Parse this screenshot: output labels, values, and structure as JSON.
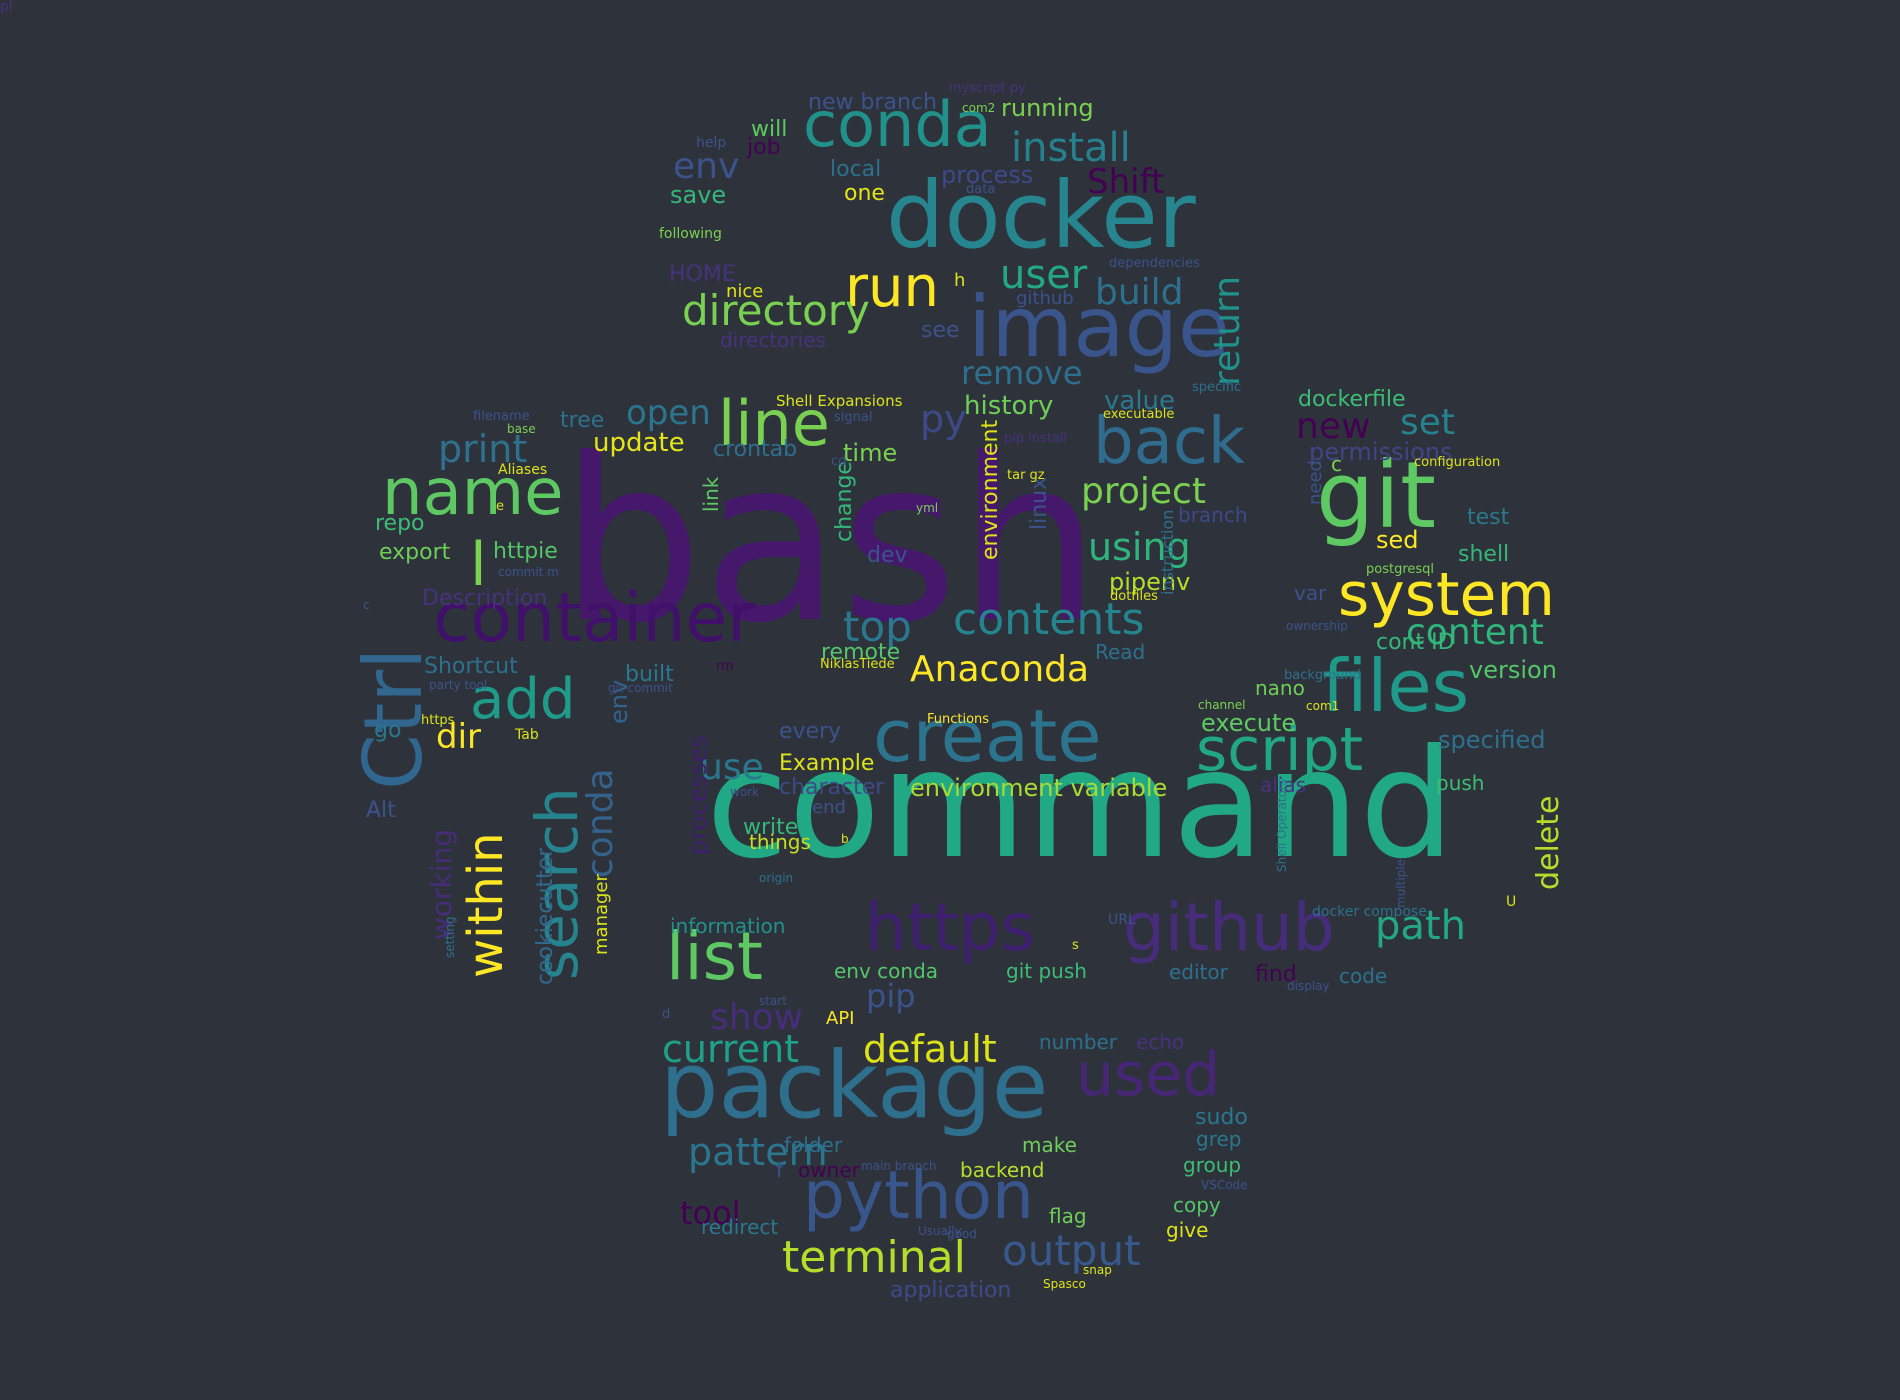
{
  "colors": {
    "background": "#2e333b"
  },
  "words": [
    {
      "text": "bash",
      "color": "#45186b"
    },
    {
      "text": "command",
      "color": "#21a884"
    },
    {
      "text": "docker",
      "color": "#26858e"
    },
    {
      "text": "package",
      "color": "#2e6f8e"
    },
    {
      "text": "image",
      "color": "#3a548c"
    },
    {
      "text": "container",
      "color": "#40106a"
    },
    {
      "text": "create",
      "color": "#2c738e"
    },
    {
      "text": "git",
      "color": "#5ec962"
    },
    {
      "text": "Ctrl",
      "color": "#31668e"
    },
    {
      "text": "files",
      "color": "#1f9a8a"
    },
    {
      "text": "python",
      "color": "#39568c"
    },
    {
      "text": "github",
      "color": "#462c7b"
    },
    {
      "text": "https",
      "color": "#3e1e6e"
    },
    {
      "text": "conda",
      "color": "#21918c"
    },
    {
      "text": "system",
      "color": "#fde725"
    },
    {
      "text": "name",
      "color": "#5ec962"
    },
    {
      "text": "line",
      "color": "#7ad151"
    },
    {
      "text": "back",
      "color": "#2f6c8e"
    },
    {
      "text": "script",
      "color": "#22a785"
    },
    {
      "text": "list",
      "color": "#5ec962"
    },
    {
      "text": "search",
      "color": "#25848e"
    },
    {
      "text": "within",
      "color": "#fde725"
    },
    {
      "text": "run",
      "color": "#fde725"
    },
    {
      "text": "used",
      "color": "#482677"
    },
    {
      "text": "add",
      "color": "#1e9c89"
    },
    {
      "text": "output",
      "color": "#38598c"
    },
    {
      "text": "install",
      "color": "#27808e"
    },
    {
      "text": "directory",
      "color": "#7ad151"
    },
    {
      "text": "terminal",
      "color": "#b5de2b"
    },
    {
      "text": "contents",
      "color": "#25858e"
    },
    {
      "text": "user",
      "color": "#22a884"
    },
    {
      "text": "path",
      "color": "#22a884"
    },
    {
      "text": "env",
      "color": "#3b528b"
    },
    {
      "text": "pattern",
      "color": "#2a768e"
    },
    {
      "text": "build",
      "color": "#2d708e"
    },
    {
      "text": "top",
      "color": "#2a778e"
    },
    {
      "text": "default",
      "color": "#dde318"
    },
    {
      "text": "current",
      "color": "#1fa088"
    },
    {
      "text": "conda",
      "color": "#33638d"
    },
    {
      "text": "env",
      "color": "#33638d"
    },
    {
      "text": "content",
      "color": "#2fb47c"
    },
    {
      "text": "Anaconda",
      "color": "#fde725"
    },
    {
      "text": "project",
      "color": "#7ad151"
    },
    {
      "text": "using",
      "color": "#2fb47c"
    },
    {
      "text": "return",
      "color": "#20928c"
    },
    {
      "text": "remove",
      "color": "#2e6e8e"
    },
    {
      "text": "print",
      "color": "#2d718e"
    },
    {
      "text": "open",
      "color": "#2b758e"
    },
    {
      "text": "show",
      "color": "#472d7b"
    },
    {
      "text": "pip",
      "color": "#3b528b"
    },
    {
      "text": "tool",
      "color": "#440154"
    },
    {
      "text": "working",
      "color": "#472c7a"
    },
    {
      "text": "delete",
      "color": "#b5de2b"
    },
    {
      "text": "new",
      "color": "#440154"
    },
    {
      "text": "set",
      "color": "#26828e"
    },
    {
      "text": "use",
      "color": "#2a788e"
    },
    {
      "text": "dir",
      "color": "#fde725"
    },
    {
      "text": "l",
      "color": "#7ad151"
    },
    {
      "text": "py",
      "color": "#3e4989"
    },
    {
      "text": "update",
      "color": "#e5e419"
    },
    {
      "text": "history",
      "color": "#6ece58"
    },
    {
      "text": "value",
      "color": "#2a778e"
    },
    {
      "text": "execute",
      "color": "#5ec962"
    },
    {
      "text": "environment variable",
      "color": "#a8db34"
    },
    {
      "text": "version",
      "color": "#54c568"
    },
    {
      "text": "specified",
      "color": "#2d708e"
    },
    {
      "text": "permissions",
      "color": "#414487"
    },
    {
      "text": "dockerfile",
      "color": "#3dbc74"
    },
    {
      "text": "running",
      "color": "#7ad151"
    },
    {
      "text": "new branch",
      "color": "#3b528b"
    },
    {
      "text": "Shift",
      "color": "#440154"
    },
    {
      "text": "process",
      "color": "#3e4989"
    },
    {
      "text": "save",
      "color": "#35b779"
    },
    {
      "text": "one",
      "color": "#e5e419"
    },
    {
      "text": "local",
      "color": "#2d708e"
    },
    {
      "text": "will",
      "color": "#5ec962"
    },
    {
      "text": "job",
      "color": "#440154"
    },
    {
      "text": "pipenv",
      "color": "#b5de2b"
    },
    {
      "text": "sed",
      "color": "#fde725"
    },
    {
      "text": "shell",
      "color": "#35b779"
    },
    {
      "text": "test",
      "color": "#2a778e"
    },
    {
      "text": "branch",
      "color": "#3e4989"
    },
    {
      "text": "time",
      "color": "#7ad151"
    },
    {
      "text": "crontab",
      "color": "#2d708e"
    },
    {
      "text": "link",
      "color": "#5ec962"
    },
    {
      "text": "change",
      "color": "#35b779"
    },
    {
      "text": "environment",
      "color": "#dde318"
    },
    {
      "text": "linux",
      "color": "#3b528b"
    },
    {
      "text": "dev",
      "color": "#3b528b"
    },
    {
      "text": "cont ID",
      "color": "#35b779"
    },
    {
      "text": "nano",
      "color": "#6ece58"
    },
    {
      "text": "var",
      "color": "#3b528b"
    },
    {
      "text": "need",
      "color": "#3b528b"
    },
    {
      "text": "c",
      "color": "#7ad151"
    },
    {
      "text": "repo",
      "color": "#3dbc74"
    },
    {
      "text": "export",
      "color": "#6ece58"
    },
    {
      "text": "httpie",
      "color": "#54c568"
    },
    {
      "text": "Description",
      "color": "#46327e"
    },
    {
      "text": "Shortcut",
      "color": "#2d708e"
    },
    {
      "text": "built",
      "color": "#2a778e"
    },
    {
      "text": "remote",
      "color": "#54c568"
    },
    {
      "text": "Read",
      "color": "#2d708e"
    },
    {
      "text": "tree",
      "color": "#2d708e"
    },
    {
      "text": "go",
      "color": "#2a778e"
    },
    {
      "text": "Alt",
      "color": "#3b528b"
    },
    {
      "text": "cookiecutter",
      "color": "#31688e"
    },
    {
      "text": "manager",
      "color": "#dde318"
    },
    {
      "text": "every",
      "color": "#3b528b"
    },
    {
      "text": "Example",
      "color": "#dde318"
    },
    {
      "text": "character",
      "color": "#3e4989"
    },
    {
      "text": "write",
      "color": "#35b779"
    },
    {
      "text": "things",
      "color": "#c2df23"
    },
    {
      "text": "information",
      "color": "#21918c"
    },
    {
      "text": "env conda",
      "color": "#54c568"
    },
    {
      "text": "git push",
      "color": "#3dbc74"
    },
    {
      "text": "editor",
      "color": "#2d708e"
    },
    {
      "text": "find",
      "color": "#440154"
    },
    {
      "text": "code",
      "color": "#2d708e"
    },
    {
      "text": "alias",
      "color": "#46327e"
    },
    {
      "text": "push",
      "color": "#3dbc74"
    },
    {
      "text": "number",
      "color": "#2d708e"
    },
    {
      "text": "echo",
      "color": "#46327e"
    },
    {
      "text": "sudo",
      "color": "#2a778e"
    },
    {
      "text": "grep",
      "color": "#2a778e"
    },
    {
      "text": "group",
      "color": "#3dbc74"
    },
    {
      "text": "copy",
      "color": "#54c568"
    },
    {
      "text": "give",
      "color": "#dde318"
    },
    {
      "text": "folder",
      "color": "#2d708e"
    },
    {
      "text": "make",
      "color": "#6ece58"
    },
    {
      "text": "backend",
      "color": "#b5de2b"
    },
    {
      "text": "flag",
      "color": "#6ece58"
    },
    {
      "text": "application",
      "color": "#3e4989"
    },
    {
      "text": "redirect",
      "color": "#2a778e"
    },
    {
      "text": "owner",
      "color": "#440154"
    },
    {
      "text": "f",
      "color": "#3b528b"
    },
    {
      "text": "API",
      "color": "#fde725"
    },
    {
      "text": "processes",
      "color": "#3e1e6e"
    },
    {
      "text": "h",
      "color": "#dde318"
    },
    {
      "text": "nice",
      "color": "#dde318"
    },
    {
      "text": "HOME",
      "color": "#46327e"
    },
    {
      "text": "see",
      "color": "#3b528b"
    },
    {
      "text": "directories",
      "color": "#46327e"
    },
    {
      "text": "github",
      "color": "#3b528b"
    },
    {
      "text": "following",
      "color": "#7ad151"
    },
    {
      "text": "help",
      "color": "#3b528b"
    },
    {
      "text": "myscript py",
      "color": "#46327e"
    },
    {
      "text": "com2",
      "color": "#7ad151"
    },
    {
      "text": "data",
      "color": "#3b528b"
    },
    {
      "text": "dependencies",
      "color": "#3b528b"
    },
    {
      "text": "specific",
      "color": "#2d708e"
    },
    {
      "text": "Shell Expansions",
      "color": "#dde318"
    },
    {
      "text": "signal",
      "color": "#3b528b"
    },
    {
      "text": "executable",
      "color": "#dde318"
    },
    {
      "text": "pip install",
      "color": "#46327e"
    },
    {
      "text": "tar gz",
      "color": "#dde318"
    },
    {
      "text": "filename",
      "color": "#3b528b"
    },
    {
      "text": "base",
      "color": "#7ad151"
    },
    {
      "text": "Aliases",
      "color": "#dde318"
    },
    {
      "text": "cd",
      "color": "#3b528b"
    },
    {
      "text": "yml",
      "color": "#7ad151"
    },
    {
      "text": "configuration",
      "color": "#dde318"
    },
    {
      "text": "commit m",
      "color": "#3b528b"
    },
    {
      "text": "e",
      "color": "#dde318"
    },
    {
      "text": "dotfiles",
      "color": "#dde318"
    },
    {
      "text": "postgresql",
      "color": "#7ad151"
    },
    {
      "text": "ownership",
      "color": "#3b528b"
    },
    {
      "text": "background",
      "color": "#2d708e"
    },
    {
      "text": "instruction",
      "color": "#2d708e"
    },
    {
      "text": "rm",
      "color": "#440154"
    },
    {
      "text": "NiklasTiede",
      "color": "#dde318"
    },
    {
      "text": "git commit",
      "color": "#3b528b"
    },
    {
      "text": "party tool",
      "color": "#3b528b"
    },
    {
      "text": "https",
      "color": "#dde318"
    },
    {
      "text": "Tab",
      "color": "#dde318"
    },
    {
      "text": "Functions",
      "color": "#fde725"
    },
    {
      "text": "channel",
      "color": "#7ad151"
    },
    {
      "text": "com1",
      "color": "#dde318"
    },
    {
      "text": "work",
      "color": "#3b528b"
    },
    {
      "text": "end",
      "color": "#3b528b"
    },
    {
      "text": "b",
      "color": "#dde318"
    },
    {
      "text": "origin",
      "color": "#2d708e"
    },
    {
      "text": "setting",
      "color": "#2d708e"
    },
    {
      "text": "Shell Operators",
      "color": "#2d708e"
    },
    {
      "text": "multiple",
      "color": "#3b528b"
    },
    {
      "text": "docker compose",
      "color": "#2d708e"
    },
    {
      "text": "U",
      "color": "#dde318"
    },
    {
      "text": "s",
      "color": "#dde318"
    },
    {
      "text": "URL",
      "color": "#3b528b"
    },
    {
      "text": "d",
      "color": "#3b528b"
    },
    {
      "text": "start",
      "color": "#3b528b"
    },
    {
      "text": "main branch",
      "color": "#3b528b"
    },
    {
      "text": "Usually",
      "color": "#3b528b"
    },
    {
      "text": "good",
      "color": "#3b528b"
    },
    {
      "text": "VSCode",
      "color": "#3b528b"
    },
    {
      "text": "Spasco",
      "color": "#dde318"
    },
    {
      "text": "snap",
      "color": "#dde318"
    },
    {
      "text": "display",
      "color": "#3b528b"
    },
    {
      "text": "c",
      "color": "#3b528b"
    },
    {
      "text": "pl",
      "color": "#46327e"
    }
  ]
}
